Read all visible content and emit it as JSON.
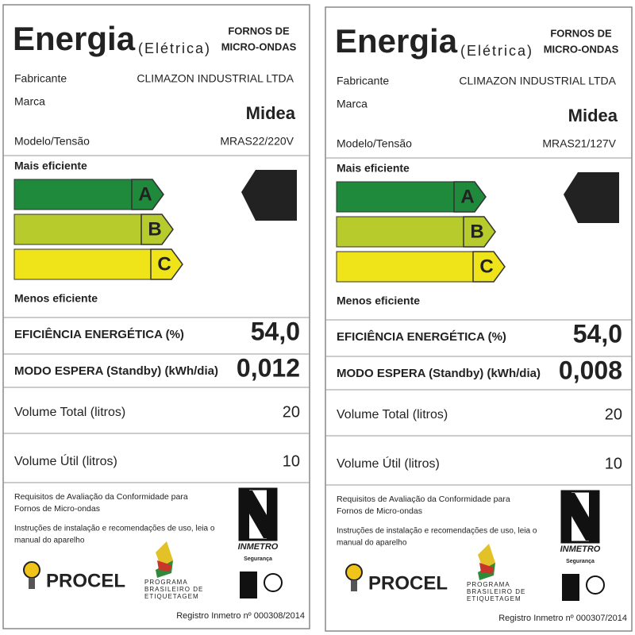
{
  "labels": [
    {
      "title": "Energia",
      "subtitle": "(Elétrica)",
      "category": [
        "FORNOS DE",
        "MICRO-ONDAS"
      ],
      "manufacturer_label": "Fabricante",
      "manufacturer": "CLIMAZON INDUSTRIAL LTDA",
      "brand_label": "Marca",
      "brand": "Midea",
      "model_label": "Modelo/Tensão",
      "model": "MRAS22/220V",
      "scale_top": "Mais eficiente",
      "classes": [
        "A",
        "B",
        "C"
      ],
      "scale_bottom": "Menos eficiente",
      "rating": "A",
      "rows": [
        {
          "label": "EFICIÊNCIA ENERGÉTICA (%)",
          "value": "54,0"
        },
        {
          "label": "MODO ESPERA (Standby) (kWh/dia)",
          "value": "0,012"
        },
        {
          "label": "Volume Total (litros)",
          "value": "20"
        },
        {
          "label": "Volume Útil (litros)",
          "value": "10"
        }
      ],
      "requirements": [
        "Requisitos de Avaliação da Conformidade para",
        "Fornos de Micro-ondas"
      ],
      "instructions": [
        "Instruções de instalação e recomendações de uso, leia o",
        "manual do aparelho"
      ],
      "procel": "PROCEL",
      "program": [
        "PROGRAMA",
        "BRASILEIRO DE",
        "ETIQUETAGEM"
      ],
      "inmetro": "INMETRO",
      "safety": "Segurança",
      "registry": "Registro Inmetro nº 000308/2014"
    },
    {
      "title": "Energia",
      "subtitle": "(Elétrica)",
      "category": [
        "FORNOS DE",
        "MICRO-ONDAS"
      ],
      "manufacturer_label": "Fabricante",
      "manufacturer": "CLIMAZON INDUSTRIAL LTDA",
      "brand_label": "Marca",
      "brand": "Midea",
      "model_label": "Modelo/Tensão",
      "model": "MRAS21/127V",
      "scale_top": "Mais eficiente",
      "classes": [
        "A",
        "B",
        "C"
      ],
      "scale_bottom": "Menos eficiente",
      "rating": "A",
      "rows": [
        {
          "label": "EFICIÊNCIA ENERGÉTICA (%)",
          "value": "54,0"
        },
        {
          "label": "MODO ESPERA (Standby) (kWh/dia)",
          "value": "0,008"
        },
        {
          "label": "Volume Total (litros)",
          "value": "20"
        },
        {
          "label": "Volume Útil (litros)",
          "value": "10"
        }
      ],
      "requirements": [
        "Requisitos de Avaliação da Conformidade para",
        "Fornos de Micro-ondas"
      ],
      "instructions": [
        "Instruções de instalação e recomendações de uso, leia o",
        "manual do aparelho"
      ],
      "procel": "PROCEL",
      "program": [
        "PROGRAMA",
        "BRASILEIRO DE",
        "ETIQUETAGEM"
      ],
      "inmetro": "INMETRO",
      "safety": "Segurança",
      "registry": "Registro Inmetro nº 000307/2014"
    }
  ]
}
